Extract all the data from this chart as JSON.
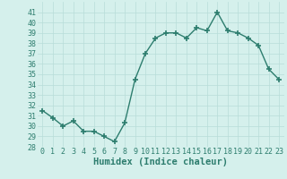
{
  "x": [
    0,
    1,
    2,
    3,
    4,
    5,
    6,
    7,
    8,
    9,
    10,
    11,
    12,
    13,
    14,
    15,
    16,
    17,
    18,
    19,
    20,
    21,
    22,
    23
  ],
  "y": [
    31.5,
    30.8,
    30.0,
    30.5,
    29.5,
    29.5,
    29.0,
    28.5,
    30.3,
    34.5,
    37.0,
    38.5,
    39.0,
    39.0,
    38.5,
    39.5,
    39.2,
    41.0,
    39.2,
    39.0,
    38.5,
    37.8,
    35.5,
    34.5
  ],
  "xlabel": "Humidex (Indice chaleur)",
  "ylim": [
    28,
    42
  ],
  "xlim": [
    -0.5,
    23.5
  ],
  "yticks": [
    28,
    29,
    30,
    31,
    32,
    33,
    34,
    35,
    36,
    37,
    38,
    39,
    40,
    41
  ],
  "xticks": [
    0,
    1,
    2,
    3,
    4,
    5,
    6,
    7,
    8,
    9,
    10,
    11,
    12,
    13,
    14,
    15,
    16,
    17,
    18,
    19,
    20,
    21,
    22,
    23
  ],
  "line_color": "#2d7d6e",
  "marker": "+",
  "bg_color": "#d5f0ec",
  "grid_color": "#b8ddd8",
  "xlabel_fontsize": 7.5,
  "tick_fontsize": 6,
  "line_width": 1.0,
  "marker_size": 4
}
